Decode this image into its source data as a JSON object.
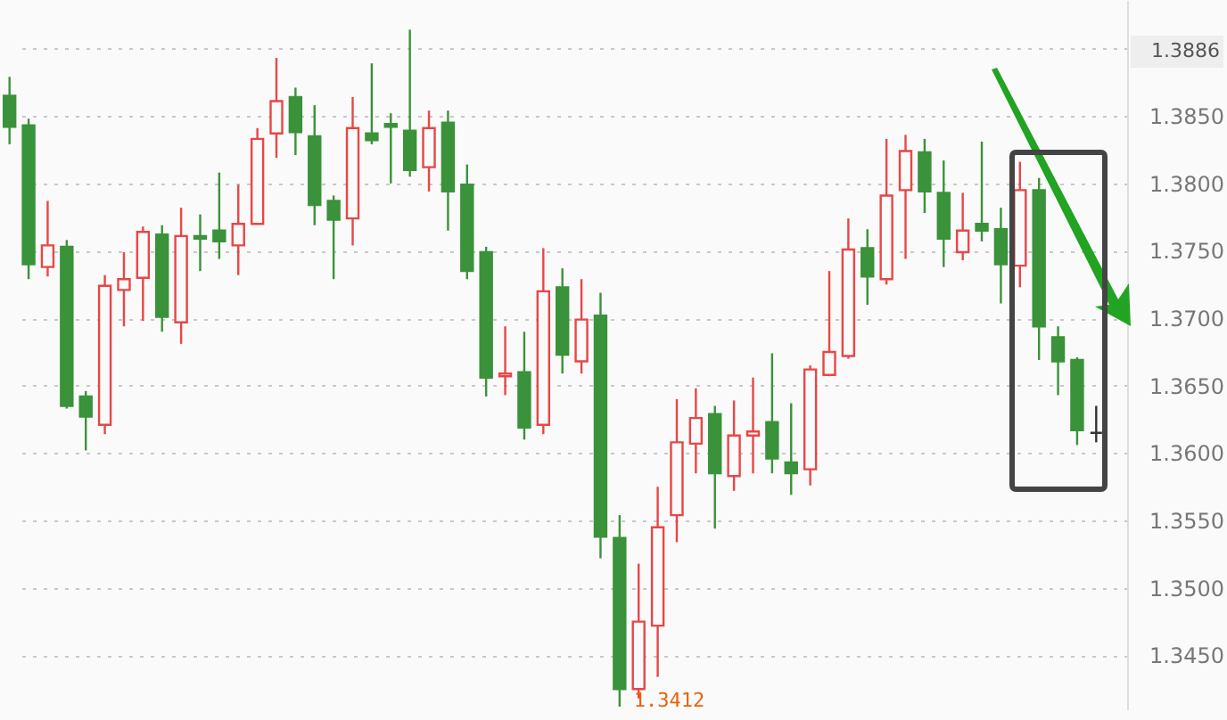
{
  "chart_data": {
    "type": "candlestick",
    "categories": [
      null,
      null,
      null,
      null,
      null,
      null,
      null,
      null,
      null,
      null,
      null,
      null,
      null,
      null,
      null,
      null,
      null,
      null,
      null,
      null,
      null,
      null,
      null,
      null,
      null,
      null,
      null,
      null,
      null,
      null,
      null,
      null,
      null,
      null,
      null,
      null,
      null,
      null,
      null,
      null,
      null,
      null,
      null,
      null,
      null,
      null,
      null,
      null,
      null,
      null,
      null,
      null,
      null,
      null,
      null,
      null,
      null,
      null
    ],
    "ohlc": [
      [
        1.3865,
        1.3879,
        1.3829,
        1.3842
      ],
      [
        1.3843,
        1.3848,
        1.3729,
        1.374
      ],
      [
        1.3738,
        1.3787,
        1.3731,
        1.3754
      ],
      [
        1.3753,
        1.3758,
        1.3633,
        1.3635
      ],
      [
        1.3642,
        1.3646,
        1.3602,
        1.3627
      ],
      [
        1.3621,
        1.3732,
        1.3614,
        1.3724
      ],
      [
        1.3721,
        1.3749,
        1.3694,
        1.3729
      ],
      [
        1.373,
        1.3768,
        1.3698,
        1.3764
      ],
      [
        1.3762,
        1.3769,
        1.369,
        1.3701
      ],
      [
        1.3697,
        1.3782,
        1.3681,
        1.3761
      ],
      [
        1.3761,
        1.3777,
        1.3735,
        1.3759
      ],
      [
        1.3765,
        1.3808,
        1.3744,
        1.3757
      ],
      [
        1.3754,
        1.3799,
        1.3732,
        1.377
      ],
      [
        1.377,
        1.3841,
        1.377,
        1.3833
      ],
      [
        1.3837,
        1.3893,
        1.3819,
        1.3861
      ],
      [
        1.3864,
        1.3871,
        1.3821,
        1.3838
      ],
      [
        1.3835,
        1.3858,
        1.3769,
        1.3784
      ],
      [
        1.3787,
        1.3791,
        1.3729,
        1.3773
      ],
      [
        1.3774,
        1.3864,
        1.3754,
        1.3841
      ],
      [
        1.3837,
        1.3889,
        1.3829,
        1.3832
      ],
      [
        1.3844,
        1.3852,
        1.38,
        1.3842
      ],
      [
        1.3839,
        1.3914,
        1.3805,
        1.381
      ],
      [
        1.3812,
        1.3854,
        1.3794,
        1.3841
      ],
      [
        1.3845,
        1.3854,
        1.3765,
        1.3794
      ],
      [
        1.3799,
        1.3814,
        1.3729,
        1.3735
      ],
      [
        1.3749,
        1.3753,
        1.3642,
        1.3656
      ],
      [
        1.3657,
        1.3694,
        1.3643,
        1.3659
      ],
      [
        1.366,
        1.369,
        1.361,
        1.3619
      ],
      [
        1.3621,
        1.3752,
        1.3614,
        1.372
      ],
      [
        1.3723,
        1.3737,
        1.3659,
        1.3673
      ],
      [
        1.3668,
        1.3729,
        1.3659,
        1.3699
      ],
      [
        1.3702,
        1.3719,
        1.3522,
        1.3538
      ],
      [
        1.3537,
        1.3554,
        1.3412,
        1.3425
      ],
      [
        1.3425,
        1.3518,
        1.3418,
        1.3475
      ],
      [
        1.3472,
        1.3575,
        1.3434,
        1.3545
      ],
      [
        1.3554,
        1.364,
        1.3534,
        1.3608
      ],
      [
        1.3607,
        1.3648,
        1.3585,
        1.3626
      ],
      [
        1.3629,
        1.3635,
        1.3544,
        1.3585
      ],
      [
        1.3583,
        1.3639,
        1.3572,
        1.3613
      ],
      [
        1.3613,
        1.3656,
        1.3585,
        1.3616
      ],
      [
        1.3623,
        1.3674,
        1.3585,
        1.3596
      ],
      [
        1.3593,
        1.3637,
        1.3569,
        1.3585
      ],
      [
        1.3588,
        1.3665,
        1.3576,
        1.3662
      ],
      [
        1.3658,
        1.3735,
        1.3657,
        1.3675
      ],
      [
        1.3672,
        1.3774,
        1.367,
        1.3751
      ],
      [
        1.3752,
        1.3766,
        1.371,
        1.3731
      ],
      [
        1.3729,
        1.3833,
        1.3725,
        1.3791
      ],
      [
        1.3795,
        1.3836,
        1.3744,
        1.3824
      ],
      [
        1.3823,
        1.3833,
        1.3778,
        1.3794
      ],
      [
        1.3793,
        1.3817,
        1.3738,
        1.3759
      ],
      [
        1.3749,
        1.3793,
        1.3743,
        1.3765
      ],
      [
        1.377,
        1.3831,
        1.3757,
        1.3765
      ],
      [
        1.3766,
        1.3782,
        1.3711,
        1.374
      ],
      [
        1.3739,
        1.3816,
        1.3723,
        1.3795
      ],
      [
        1.3795,
        1.3804,
        1.3669,
        1.3694
      ],
      [
        1.3686,
        1.3694,
        1.3643,
        1.3668
      ],
      [
        1.3669,
        1.3671,
        1.3606,
        1.3617
      ],
      [
        1.3615,
        1.3635,
        1.3608,
        1.3615
      ]
    ],
    "colors": [
      "#3a923a",
      "#3a923a",
      "#e84646",
      "#3a923a",
      "#3a923a",
      "#e84646",
      "#e84646",
      "#e84646",
      "#3a923a",
      "#e84646",
      "#3a923a",
      "#3a923a",
      "#e84646",
      "#e84646",
      "#e84646",
      "#3a923a",
      "#3a923a",
      "#3a923a",
      "#e84646",
      "#3a923a",
      "#3a923a",
      "#3a923a",
      "#e84646",
      "#3a923a",
      "#3a923a",
      "#3a923a",
      "#e84646",
      "#3a923a",
      "#e84646",
      "#3a923a",
      "#e84646",
      "#3a923a",
      "#3a923a",
      "#e84646",
      "#e84646",
      "#e84646",
      "#e84646",
      "#3a923a",
      "#e84646",
      "#e84646",
      "#3a923a",
      "#3a923a",
      "#e84646",
      "#e84646",
      "#e84646",
      "#3a923a",
      "#e84646",
      "#e84646",
      "#3a923a",
      "#3a923a",
      "#e84646",
      "#3a923a",
      "#3a923a",
      "#e84646",
      "#3a923a",
      "#3a923a",
      "#3a923a",
      "#333333"
    ],
    "ylim": [
      1.341,
      1.3936
    ],
    "yticks": [
      {
        "value": 1.345,
        "label": "1.3450"
      },
      {
        "value": 1.35,
        "label": "1.3500"
      },
      {
        "value": 1.355,
        "label": "1.3550"
      },
      {
        "value": 1.36,
        "label": "1.3600"
      },
      {
        "value": 1.365,
        "label": "1.3650"
      },
      {
        "value": 1.37,
        "label": "1.3700"
      },
      {
        "value": 1.375,
        "label": "1.3750"
      },
      {
        "value": 1.38,
        "label": "1.3800"
      },
      {
        "value": 1.385,
        "label": "1.3850"
      },
      {
        "value": 1.39,
        "label": null
      }
    ],
    "grid": "y",
    "tick_labels": "y",
    "annotations": [
      "1.3886",
      "1.3412"
    ]
  }
}
